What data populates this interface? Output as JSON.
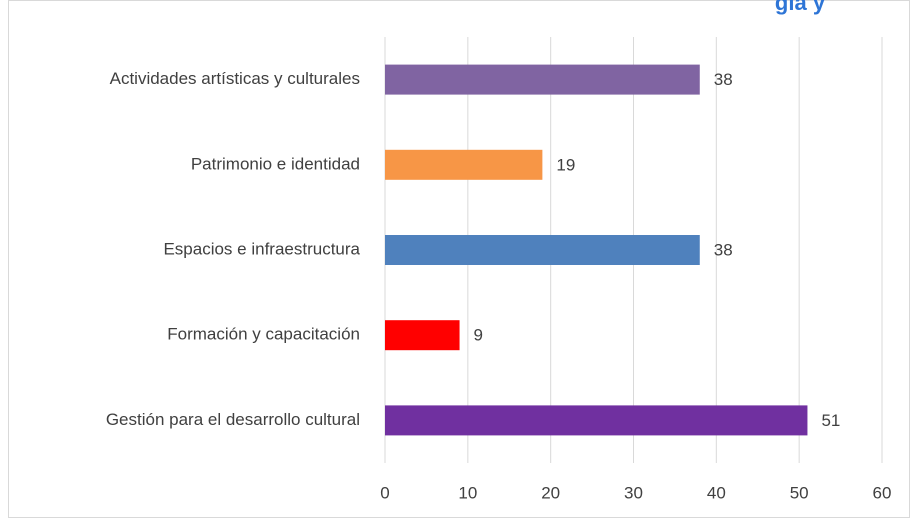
{
  "chart_data": {
    "type": "bar",
    "orientation": "horizontal",
    "title": "gía y",
    "categories": [
      "Actividades artísticas y culturales",
      "Patrimonio e identidad",
      "Espacios e infraestructura",
      "Formación y capacitación",
      "Gestión para el desarrollo cultural"
    ],
    "values": [
      38,
      19,
      38,
      9,
      51
    ],
    "colors": [
      "#8064a2",
      "#f79646",
      "#4f81bd",
      "#ff0000",
      "#7030a0"
    ],
    "xlim": [
      0,
      60
    ],
    "xticks": [
      0,
      10,
      20,
      30,
      40,
      50,
      60
    ],
    "grid": true
  }
}
